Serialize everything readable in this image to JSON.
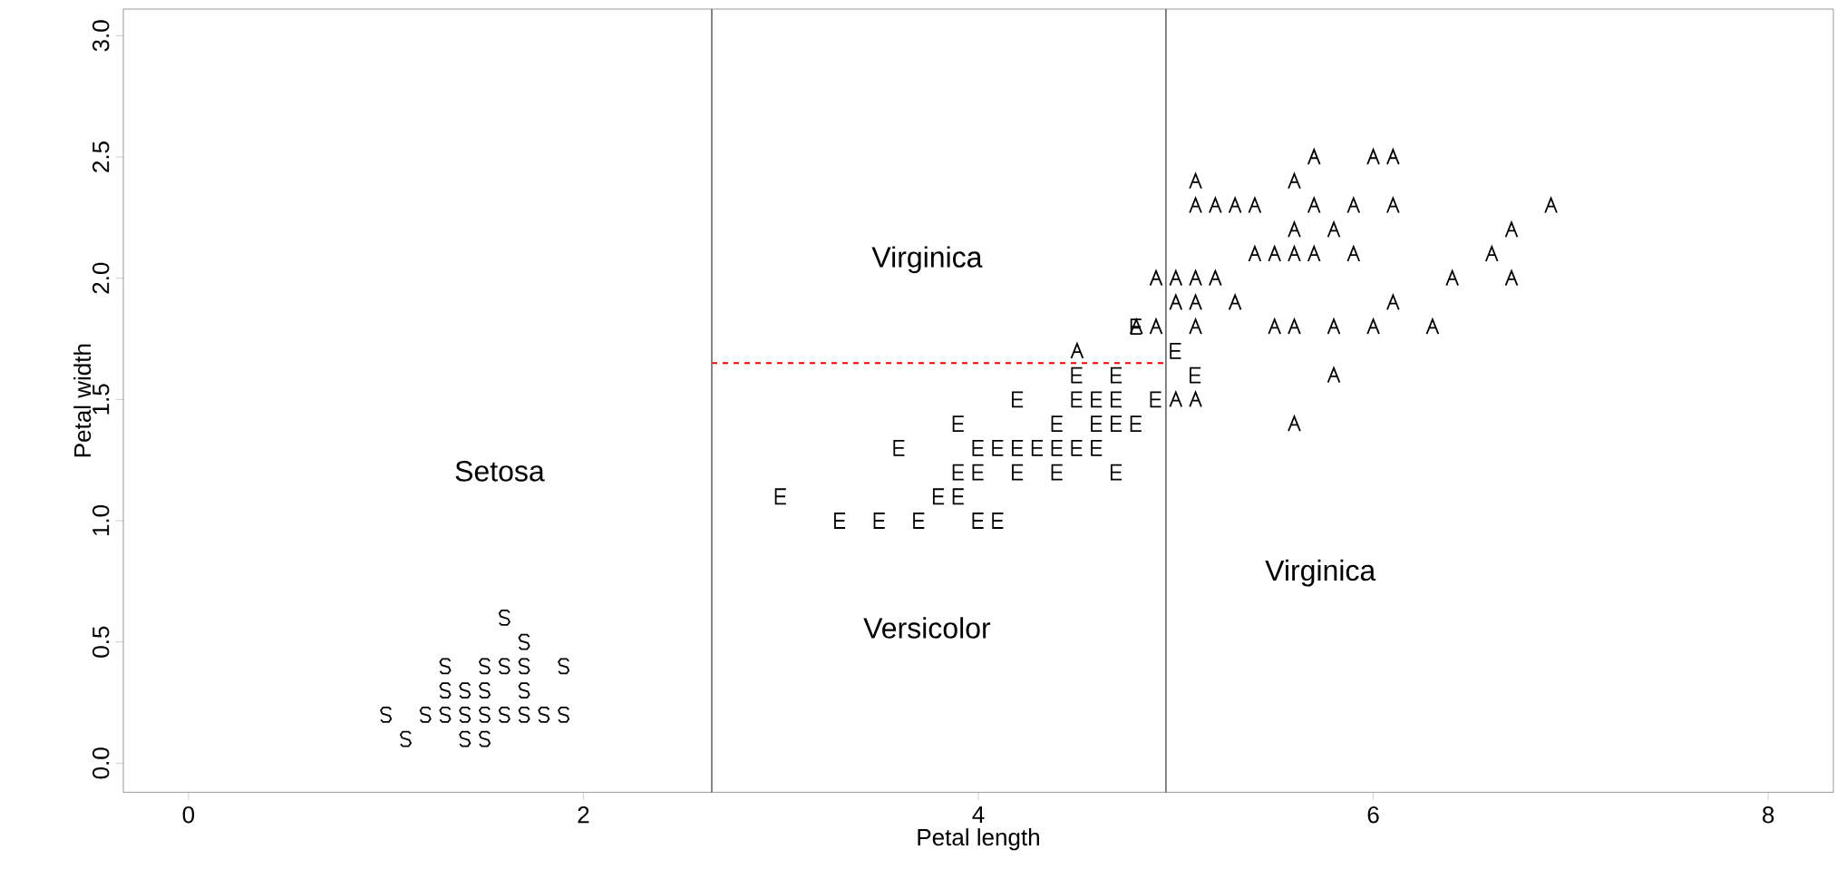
{
  "chart_data": {
    "type": "scatter",
    "xlabel": "Petal length",
    "ylabel": "Petal width",
    "xlim": [
      -0.33,
      8.33
    ],
    "ylim": [
      -0.12,
      3.11
    ],
    "xticks": [
      0,
      2,
      4,
      6,
      8
    ],
    "yticks": [
      {
        "value": 0,
        "label": "0.0"
      },
      {
        "value": 0.5,
        "label": "0.5"
      },
      {
        "value": 1,
        "label": "1.0"
      },
      {
        "value": 1.5,
        "label": "1.5"
      },
      {
        "value": 2,
        "label": "2.0"
      },
      {
        "value": 2.5,
        "label": "2.5"
      },
      {
        "value": 3,
        "label": "3.0"
      }
    ],
    "series": [
      {
        "color": "#000000",
        "x": [
          1.6,
          1.7,
          1.3,
          1.5,
          1.6,
          1.7,
          1.9,
          1.3,
          1.4,
          1.5,
          1.7,
          1.0,
          1.2,
          1.3,
          1.4,
          1.5,
          1.6,
          1.7,
          1.8,
          1.9,
          1.1,
          1.4,
          1.5
        ],
        "values": [
          0.6,
          0.5,
          0.4,
          0.4,
          0.4,
          0.4,
          0.4,
          0.3,
          0.3,
          0.3,
          0.3,
          0.2,
          0.2,
          0.2,
          0.2,
          0.2,
          0.2,
          0.2,
          0.2,
          0.2,
          0.1,
          0.1,
          0.1
        ]
      },
      {
        "color": "#000000",
        "x": [
          4.8,
          5.0,
          4.5,
          4.7,
          5.1,
          4.2,
          4.5,
          4.6,
          4.7,
          4.9,
          3.9,
          4.4,
          4.6,
          4.7,
          4.8,
          3.6,
          4.0,
          4.1,
          4.2,
          4.3,
          4.4,
          4.5,
          4.6,
          3.9,
          4.0,
          4.2,
          4.4,
          4.7,
          3.0,
          3.8,
          3.9,
          3.3,
          3.5,
          3.7,
          4.0,
          4.1
        ],
        "values": [
          1.8,
          1.7,
          1.6,
          1.6,
          1.6,
          1.5,
          1.5,
          1.5,
          1.5,
          1.5,
          1.4,
          1.4,
          1.4,
          1.4,
          1.4,
          1.3,
          1.3,
          1.3,
          1.3,
          1.3,
          1.3,
          1.3,
          1.3,
          1.2,
          1.2,
          1.2,
          1.2,
          1.2,
          1.1,
          1.1,
          1.1,
          1.0,
          1.0,
          1.0,
          1.0,
          1.0
        ]
      },
      {
        "color": "#000000",
        "x": [
          5.7,
          6.0,
          6.1,
          5.1,
          5.6,
          5.1,
          5.2,
          5.3,
          5.4,
          5.7,
          5.9,
          6.1,
          6.9,
          5.6,
          5.8,
          6.7,
          5.4,
          5.5,
          5.6,
          5.7,
          5.9,
          6.6,
          4.9,
          5.0,
          5.1,
          5.2,
          6.4,
          6.7,
          5.0,
          5.1,
          5.3,
          6.1,
          4.8,
          4.9,
          5.1,
          5.5,
          5.6,
          5.8,
          6.0,
          6.3,
          4.5,
          5.8,
          5.0,
          5.1,
          5.6
        ],
        "values": [
          2.5,
          2.5,
          2.5,
          2.4,
          2.4,
          2.3,
          2.3,
          2.3,
          2.3,
          2.3,
          2.3,
          2.3,
          2.3,
          2.2,
          2.2,
          2.2,
          2.1,
          2.1,
          2.1,
          2.1,
          2.1,
          2.1,
          2.0,
          2.0,
          2.0,
          2.0,
          2.0,
          2.0,
          1.9,
          1.9,
          1.9,
          1.9,
          1.8,
          1.8,
          1.8,
          1.8,
          1.8,
          1.8,
          1.8,
          1.8,
          1.7,
          1.6,
          1.5,
          1.5,
          1.4
        ]
      },
      {
        "type": "line",
        "color": "#ff0000",
        "line_style": "dashed",
        "x": [
          2.65,
          4.95
        ],
        "values": [
          1.65,
          1.65
        ]
      }
    ],
    "ref_lines": [
      {
        "axis": "x",
        "value": 2.65,
        "color": "#666666"
      },
      {
        "axis": "x",
        "value": 4.95,
        "color": "#666666"
      }
    ],
    "annotations": [
      "Setosa",
      "Virginica",
      "Versicolor",
      "Virginica"
    ]
  }
}
